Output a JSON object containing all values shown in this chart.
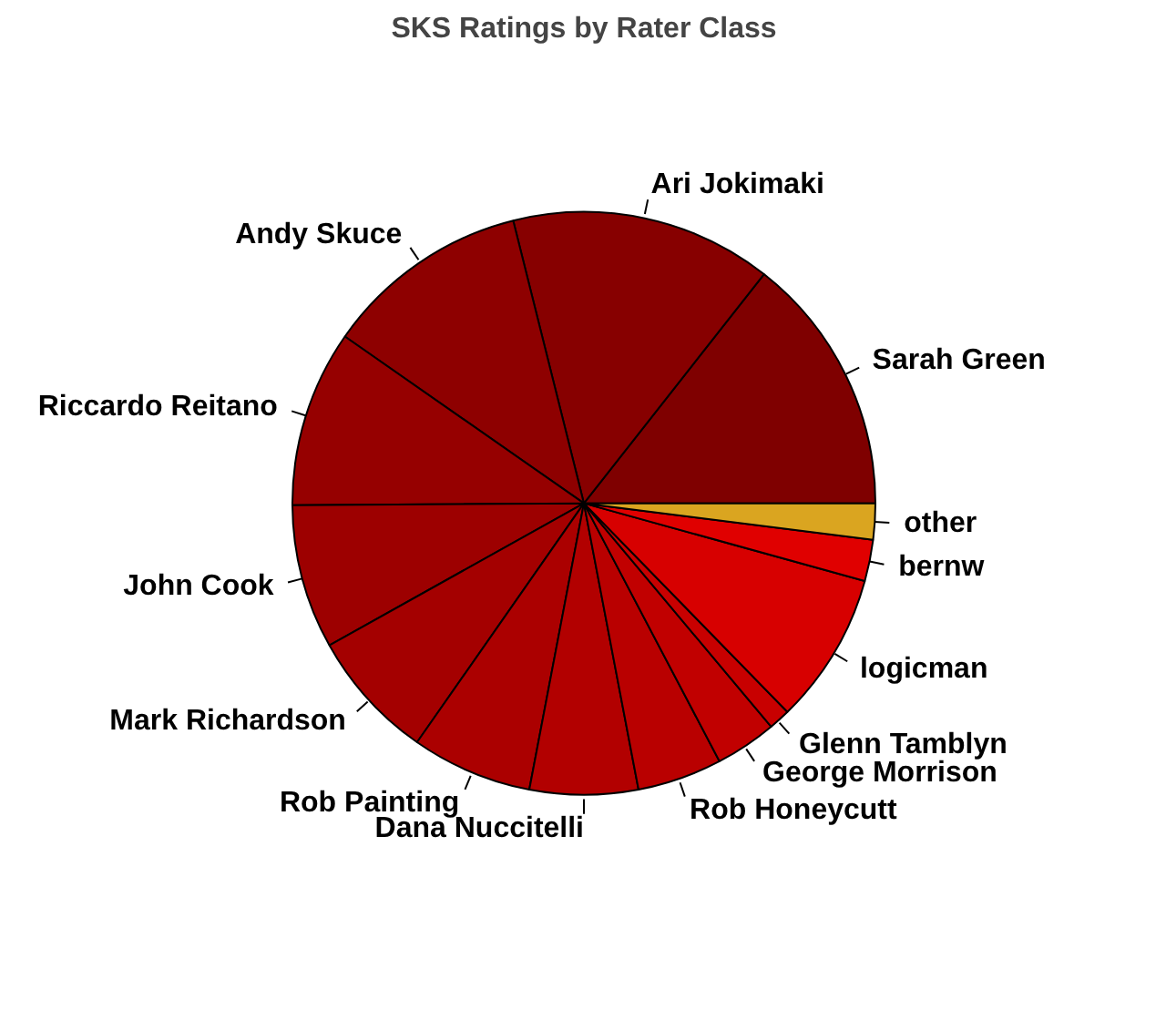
{
  "chart_data": {
    "type": "pie",
    "title": "SKS Ratings by Rater Class",
    "categories": [
      "Sarah Green",
      "Ari Jokimaki",
      "Andy Skuce",
      "Riccardo Reitano",
      "John Cook",
      "Mark Richardson",
      "Rob Painting",
      "Dana Nuccitelli",
      "Rob Honeycutt",
      "George Morrison",
      "Glenn Tamblyn",
      "logicman",
      "bernw",
      "other"
    ],
    "values": [
      14.4,
      14.5,
      11.4,
      9.8,
      8.0,
      7.2,
      6.7,
      6.0,
      4.7,
      3.4,
      1.2,
      8.4,
      2.3,
      2.0
    ],
    "colors": [
      "#7f0000",
      "#870000",
      "#8e0000",
      "#960000",
      "#9d0000",
      "#a40000",
      "#ab0000",
      "#b20000",
      "#b90000",
      "#c10000",
      "#c80000",
      "#d70000",
      "#e00000",
      "#daa520"
    ],
    "legend": false
  }
}
